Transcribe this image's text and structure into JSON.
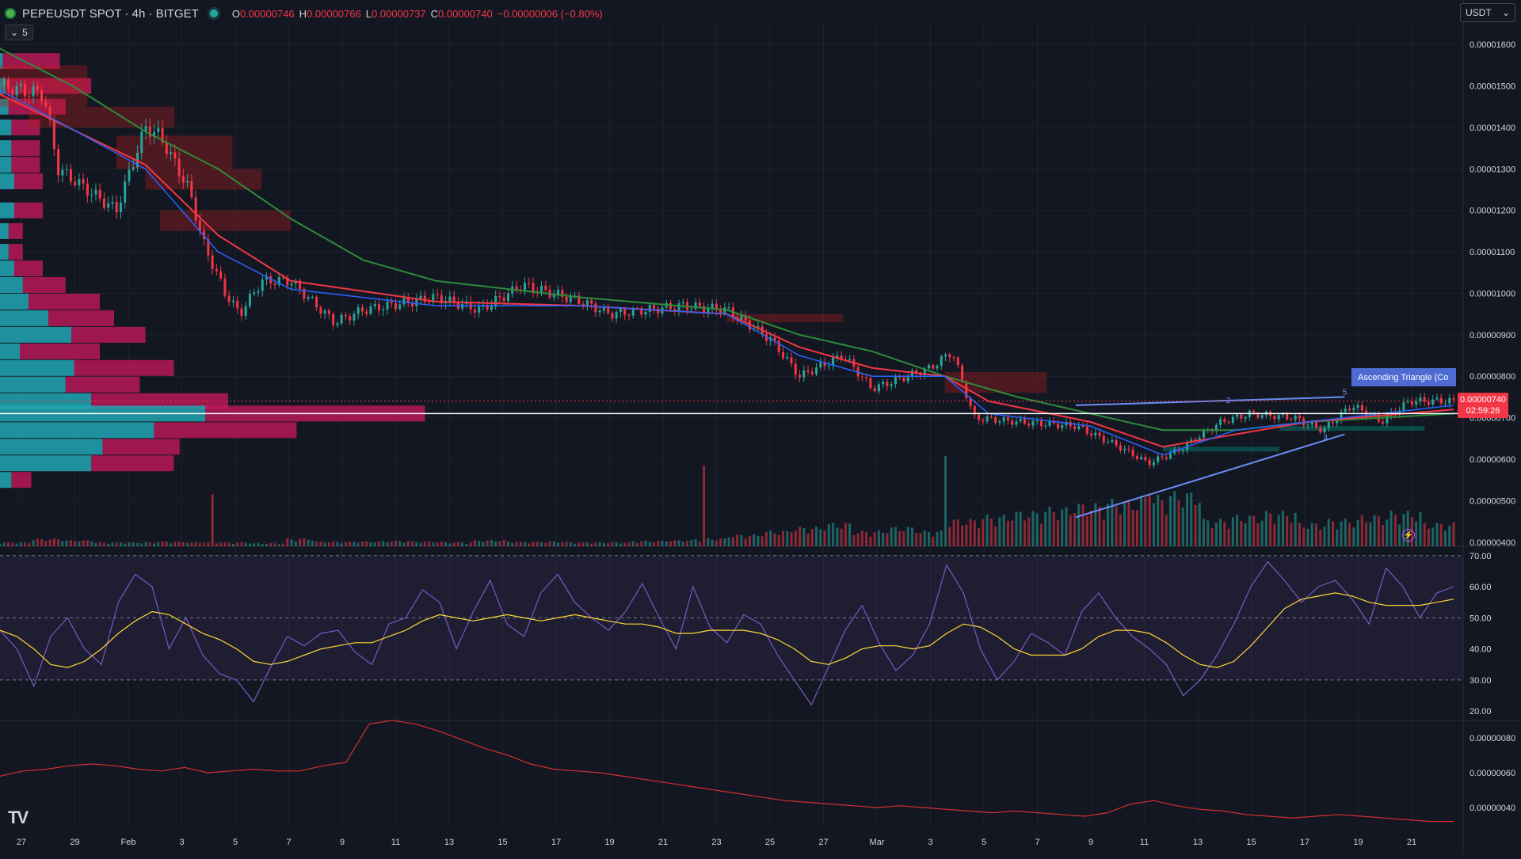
{
  "header": {
    "symbol_title": "PEPEUSDT SPOT · 4h · BITGET",
    "ohlc": [
      {
        "k": "O",
        "v": "0.00000746"
      },
      {
        "k": "H",
        "v": "0.00000766"
      },
      {
        "k": "L",
        "v": "0.00000737"
      },
      {
        "k": "C",
        "v": "0.00000740"
      }
    ],
    "change": "−0.00000006 (−0.80%)",
    "indicators_count": "5"
  },
  "currency_select": {
    "value": "USDT",
    "icon": "chevron-down-icon"
  },
  "logo": "TV",
  "live_badge": {
    "color": "#26a69a"
  },
  "pattern_label": "Ascending Triangle (Co",
  "last_price": {
    "value": "0.00000740",
    "countdown": "02:59:26"
  },
  "colors": {
    "background": "#131722",
    "bull": "#26a69a",
    "bear": "#f23645",
    "ema_fast": "#2962ff",
    "ema_mid": "#f23645",
    "ema_slow": "#2e8b3a",
    "rsi": "#7e57c2",
    "rsi_ma": "#fdd835",
    "pattern": "#6b8cf2"
  },
  "chart_data": [
    {
      "type": "candlestick",
      "symbol": "PEPEUSDT SPOT",
      "interval": "4h",
      "exchange": "BITGET",
      "x_ticks": [
        "27",
        "29",
        "Feb",
        "3",
        "5",
        "7",
        "9",
        "11",
        "13",
        "15",
        "17",
        "19",
        "21",
        "23",
        "25",
        "27",
        "Mar",
        "3",
        "5",
        "7",
        "9",
        "11",
        "13",
        "15",
        "17",
        "19",
        "21"
      ],
      "y_ticks": [
        "0.00001600",
        "0.00001500",
        "0.00001400",
        "0.00001300",
        "0.00001200",
        "0.00001100",
        "0.00001000",
        "0.00000900",
        "0.00000800",
        "0.00000700",
        "0.00000600",
        "0.00000500",
        "0.00000400"
      ],
      "ylim": [
        3.9e-06,
        1.65e-05
      ],
      "close_path": [
        [
          0,
          1.5e-05
        ],
        [
          0.03,
          1.48e-05
        ],
        [
          0.04,
          1.3e-05
        ],
        [
          0.06,
          1.25e-05
        ],
        [
          0.08,
          1.2e-05
        ],
        [
          0.1,
          1.4e-05
        ],
        [
          0.11,
          1.38e-05
        ],
        [
          0.13,
          1.25e-05
        ],
        [
          0.14,
          1.12e-05
        ],
        [
          0.155,
          1e-05
        ],
        [
          0.165,
          9.5e-06
        ],
        [
          0.18,
          1.03e-05
        ],
        [
          0.2,
          1.03e-05
        ],
        [
          0.23,
          9.3e-06
        ],
        [
          0.25,
          9.6e-06
        ],
        [
          0.3,
          9.9e-06
        ],
        [
          0.33,
          9.6e-06
        ],
        [
          0.36,
          1.02e-05
        ],
        [
          0.4,
          9.8e-06
        ],
        [
          0.42,
          9.5e-06
        ],
        [
          0.47,
          9.7e-06
        ],
        [
          0.5,
          9.6e-06
        ],
        [
          0.53,
          8.9e-06
        ],
        [
          0.55,
          8e-06
        ],
        [
          0.58,
          8.5e-06
        ],
        [
          0.6,
          7.7e-06
        ],
        [
          0.64,
          8.2e-06
        ],
        [
          0.655,
          8.6e-06
        ],
        [
          0.67,
          7e-06
        ],
        [
          0.7,
          6.9e-06
        ],
        [
          0.74,
          6.8e-06
        ],
        [
          0.77,
          6.3e-06
        ],
        [
          0.79,
          5.9e-06
        ],
        [
          0.81,
          6.2e-06
        ],
        [
          0.84,
          6.9e-06
        ],
        [
          0.86,
          7.1e-06
        ],
        [
          0.89,
          7e-06
        ],
        [
          0.91,
          6.7e-06
        ],
        [
          0.93,
          7.3e-06
        ],
        [
          0.95,
          6.9e-06
        ],
        [
          0.97,
          7.4e-06
        ],
        [
          1,
          7.4e-06
        ]
      ],
      "ema_fast_path": [
        [
          0,
          1.49e-05
        ],
        [
          0.1,
          1.3e-05
        ],
        [
          0.15,
          1.1e-05
        ],
        [
          0.2,
          1.01e-05
        ],
        [
          0.3,
          9.7e-06
        ],
        [
          0.4,
          9.7e-06
        ],
        [
          0.5,
          9.5e-06
        ],
        [
          0.55,
          8.5e-06
        ],
        [
          0.6,
          8e-06
        ],
        [
          0.65,
          8e-06
        ],
        [
          0.68,
          7.1e-06
        ],
        [
          0.75,
          6.8e-06
        ],
        [
          0.8,
          6.1e-06
        ],
        [
          0.85,
          6.7e-06
        ],
        [
          0.9,
          6.9e-06
        ],
        [
          1,
          7.3e-06
        ]
      ],
      "ema_mid_path": [
        [
          0,
          1.48e-05
        ],
        [
          0.1,
          1.31e-05
        ],
        [
          0.15,
          1.14e-05
        ],
        [
          0.2,
          1.03e-05
        ],
        [
          0.3,
          9.8e-06
        ],
        [
          0.4,
          9.7e-06
        ],
        [
          0.5,
          9.5e-06
        ],
        [
          0.55,
          8.7e-06
        ],
        [
          0.6,
          8.2e-06
        ],
        [
          0.65,
          8e-06
        ],
        [
          0.68,
          7.4e-06
        ],
        [
          0.75,
          6.9e-06
        ],
        [
          0.8,
          6.3e-06
        ],
        [
          0.85,
          6.6e-06
        ],
        [
          0.9,
          6.9e-06
        ],
        [
          1,
          7.2e-06
        ]
      ],
      "ema_slow_path": [
        [
          0,
          1.59e-05
        ],
        [
          0.05,
          1.5e-05
        ],
        [
          0.1,
          1.39e-05
        ],
        [
          0.15,
          1.3e-05
        ],
        [
          0.2,
          1.18e-05
        ],
        [
          0.25,
          1.08e-05
        ],
        [
          0.3,
          1.03e-05
        ],
        [
          0.4,
          9.9e-06
        ],
        [
          0.5,
          9.6e-06
        ],
        [
          0.55,
          9e-06
        ],
        [
          0.6,
          8.6e-06
        ],
        [
          0.65,
          8e-06
        ],
        [
          0.7,
          7.5e-06
        ],
        [
          0.75,
          7.1e-06
        ],
        [
          0.8,
          6.7e-06
        ],
        [
          0.85,
          6.7e-06
        ],
        [
          0.9,
          6.9e-06
        ],
        [
          1,
          7.1e-06
        ]
      ],
      "pattern": {
        "name": "Ascending Triangle",
        "resistance": [
          [
            0.74,
            7.3e-06
          ],
          [
            0.925,
            7.5e-06
          ]
        ],
        "support": [
          [
            0.74,
            4.6e-06
          ],
          [
            0.925,
            6.6e-06
          ]
        ],
        "labels": [
          "2",
          "5",
          "4"
        ]
      },
      "volume_profile": {
        "levels": [
          1.56e-05,
          1.5e-05,
          1.45e-05,
          1.4e-05,
          1.35e-05,
          1.31e-05,
          1.27e-05,
          1.2e-05,
          1.15e-05,
          1.1e-05,
          1.06e-05,
          1.02e-05,
          9.8e-06,
          9.4e-06,
          9e-06,
          8.6e-06,
          8.2e-06,
          7.8e-06,
          7.4e-06,
          7.1e-06,
          6.7e-06,
          6.3e-06,
          5.9e-06,
          5.5e-06
        ],
        "buy": [
          0.002,
          0.004,
          0.006,
          0.008,
          0.008,
          0.008,
          0.01,
          0.01,
          0.006,
          0.006,
          0.01,
          0.016,
          0.02,
          0.034,
          0.05,
          0.014,
          0.052,
          0.046,
          0.064,
          0.144,
          0.108,
          0.072,
          0.064,
          0.008
        ],
        "sell": [
          0.04,
          0.06,
          0.04,
          0.02,
          0.02,
          0.02,
          0.02,
          0.02,
          0.01,
          0.01,
          0.02,
          0.03,
          0.05,
          0.046,
          0.052,
          0.056,
          0.07,
          0.052,
          0.096,
          0.154,
          0.1,
          0.054,
          0.058,
          0.014
        ]
      },
      "price_lines": {
        "last": 7.4e-06,
        "poc": 7.1e-06
      }
    },
    {
      "type": "bar",
      "name": "Volume",
      "profile": [
        0.05,
        0.1,
        0.08,
        0.05,
        0.05,
        0.06,
        0.05,
        0.05,
        0.04,
        0.1,
        0.06,
        0.06,
        0.07,
        0.06,
        0.05,
        0.08,
        0.06,
        0.06,
        0.05,
        0.05,
        0.07,
        0.08,
        0.1,
        0.15,
        0.2,
        0.25,
        0.3,
        0.2,
        0.25,
        0.2,
        0.35,
        0.4,
        0.45,
        0.5,
        0.55,
        0.6,
        0.65,
        0.7,
        0.35,
        0.4,
        0.45,
        0.3,
        0.35,
        0.4,
        0.45,
        0.3
      ],
      "spikes": [
        [
          0.145,
          0.55
        ],
        [
          0.485,
          0.85
        ],
        [
          0.65,
          0.95
        ],
        [
          0.74,
          0.35
        ],
        [
          0.79,
          0.55
        ]
      ],
      "bear_when": "close below previous close"
    },
    {
      "type": "line",
      "name": "RSI",
      "y_ticks": [
        "70.00",
        "60.00",
        "50.00",
        "40.00",
        "30.00",
        "20.00"
      ],
      "ylim": [
        17,
        73
      ],
      "bands": [
        30,
        70
      ],
      "midline": 50,
      "rsi_series": [
        46,
        40,
        28,
        44,
        50,
        40,
        35,
        55,
        64,
        60,
        40,
        50,
        38,
        32,
        30,
        23,
        34,
        44,
        41,
        45,
        46,
        39,
        35,
        48,
        50,
        59,
        55,
        40,
        52,
        62,
        48,
        44,
        58,
        64,
        55,
        50,
        46,
        52,
        61,
        50,
        40,
        60,
        47,
        42,
        51,
        48,
        38,
        30,
        22,
        34,
        46,
        54,
        42,
        33,
        38,
        48,
        67,
        58,
        40,
        30,
        36,
        45,
        42,
        38,
        52,
        58,
        50,
        44,
        40,
        35,
        25,
        30,
        38,
        48,
        60,
        68,
        62,
        55,
        60,
        62,
        56,
        48,
        66,
        60,
        50,
        58,
        60
      ],
      "rsi_ma_series": [
        46,
        44,
        40,
        35,
        34,
        36,
        40,
        45,
        49,
        52,
        51,
        48,
        45,
        43,
        40,
        36,
        35,
        36,
        38,
        40,
        41,
        42,
        42,
        44,
        46,
        49,
        51,
        50,
        49,
        50,
        51,
        50,
        49,
        50,
        51,
        50,
        49,
        48,
        48,
        47,
        45,
        45,
        46,
        46,
        46,
        45,
        43,
        40,
        36,
        35,
        37,
        40,
        41,
        41,
        40,
        41,
        45,
        48,
        47,
        44,
        40,
        38,
        38,
        38,
        40,
        44,
        46,
        46,
        45,
        42,
        38,
        35,
        34,
        36,
        41,
        47,
        53,
        56,
        57,
        58,
        57,
        55,
        54,
        54,
        54,
        55,
        56
      ]
    },
    {
      "type": "line",
      "name": "Oscillator",
      "y_ticks": [
        "0.00000080",
        "0.00000060",
        "0.00000040"
      ],
      "ylim": [
        3e-07,
        9e-07
      ],
      "values": [
        5.8e-07,
        6.1e-07,
        6.2e-07,
        6.4e-07,
        6.5e-07,
        6.4e-07,
        6.2e-07,
        6.1e-07,
        6.3e-07,
        6e-07,
        6.1e-07,
        6.2e-07,
        6.1e-07,
        6.1e-07,
        6.4e-07,
        6.6e-07,
        8.8e-07,
        9e-07,
        8.8e-07,
        8.4e-07,
        7.9e-07,
        7.4e-07,
        7e-07,
        6.5e-07,
        6.2e-07,
        6.1e-07,
        6e-07,
        5.8e-07,
        5.6e-07,
        5.4e-07,
        5.2e-07,
        5e-07,
        4.8e-07,
        4.6e-07,
        4.4e-07,
        4.3e-07,
        4.2e-07,
        4.1e-07,
        4e-07,
        4.1e-07,
        4e-07,
        3.9e-07,
        3.8e-07,
        3.7e-07,
        3.8e-07,
        3.7e-07,
        3.6e-07,
        3.5e-07,
        3.7e-07,
        4.2e-07,
        4.4e-07,
        4.1e-07,
        3.9e-07,
        3.8e-07,
        3.6e-07,
        3.5e-07,
        3.4e-07,
        3.5e-07,
        3.6e-07,
        3.5e-07,
        3.4e-07,
        3.3e-07,
        3.2e-07,
        3.2e-07
      ]
    }
  ]
}
